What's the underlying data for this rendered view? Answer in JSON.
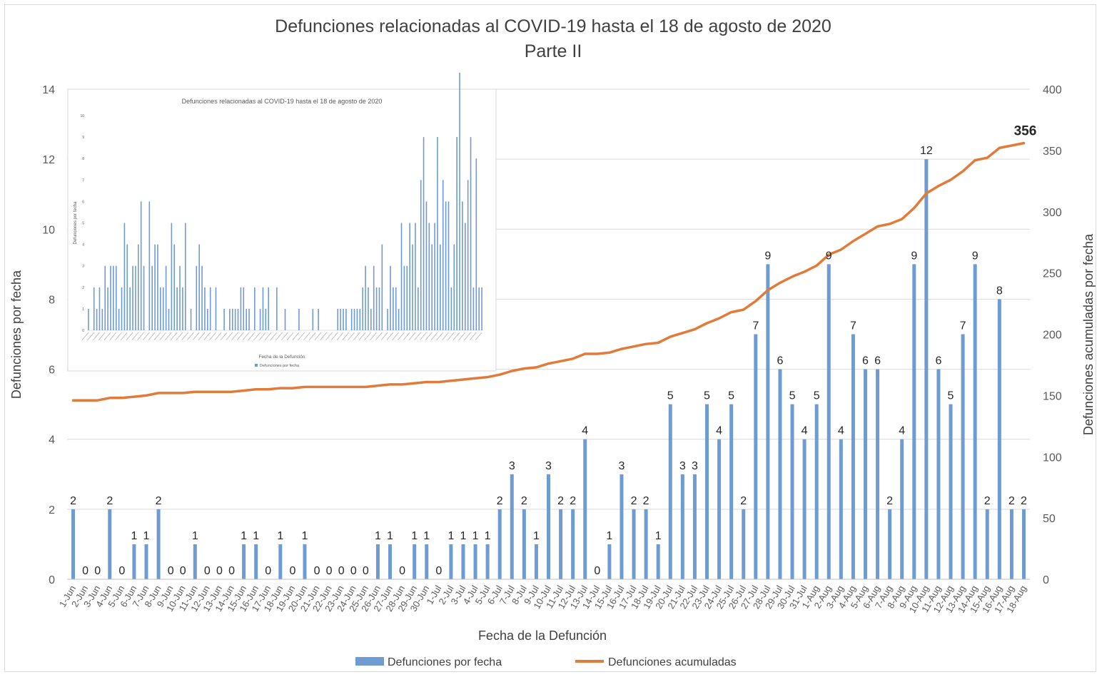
{
  "chart_data": {
    "type": "bar",
    "title": "Defunciones relacionadas al COVID-19 hasta el 18 de agosto de 2020",
    "subtitle": "Parte II",
    "xlabel": "Fecha de la Defunción",
    "ylabel": "Defunciones por fecha",
    "ylabel_right": "Defunciones acumuladas por fecha",
    "ylim": [
      0,
      14
    ],
    "ylim_right": [
      0,
      400
    ],
    "yticks": [
      0,
      2,
      4,
      6,
      8,
      10,
      12,
      14
    ],
    "yticks_right": [
      0,
      50,
      100,
      150,
      200,
      250,
      300,
      350,
      400
    ],
    "grid": true,
    "legend_position": "bottom",
    "categories": [
      "1-Jun",
      "2-Jun",
      "3-Jun",
      "4-Jun",
      "5-Jun",
      "6-Jun",
      "7-Jun",
      "8-Jun",
      "9-Jun",
      "10-Jun",
      "11-Jun",
      "12-Jun",
      "13-Jun",
      "14-Jun",
      "15-Jun",
      "16-Jun",
      "17-Jun",
      "18-Jun",
      "19-Jun",
      "20-Jun",
      "21-Jun",
      "22-Jun",
      "23-Jun",
      "24-Jun",
      "25-Jun",
      "26-Jun",
      "27-Jun",
      "28-Jun",
      "29-Jun",
      "30-Jun",
      "1-Jul",
      "2-Jul",
      "3-Jul",
      "4-Jul",
      "5-Jul",
      "6-Jul",
      "7-Jul",
      "8-Jul",
      "9-Jul",
      "10-Jul",
      "11-Jul",
      "12-Jul",
      "13-Jul",
      "14-Jul",
      "15-Jul",
      "16-Jul",
      "17-Jul",
      "18-Jul",
      "19-Jul",
      "20-Jul",
      "21-Jul",
      "22-Jul",
      "23-Jul",
      "24-Jul",
      "25-Jul",
      "26-Jul",
      "27-Jul",
      "28-Jul",
      "29-Jul",
      "30-Jul",
      "31-Jul",
      "1-Aug",
      "2-Aug",
      "3-Aug",
      "4-Aug",
      "5-Aug",
      "6-Aug",
      "7-Aug",
      "8-Aug",
      "9-Aug",
      "10-Aug",
      "11-Aug",
      "12-Aug",
      "13-Aug",
      "14-Aug",
      "15-Aug",
      "16-Aug",
      "17-Aug",
      "18-Aug"
    ],
    "series": [
      {
        "name": "Defunciones por fecha",
        "type": "bar",
        "axis": "left",
        "color": "#6f9bd3",
        "values": [
          2,
          0,
          0,
          2,
          0,
          1,
          1,
          2,
          0,
          0,
          1,
          0,
          0,
          0,
          1,
          1,
          0,
          1,
          0,
          1,
          0,
          0,
          0,
          0,
          0,
          1,
          1,
          0,
          1,
          1,
          0,
          1,
          1,
          1,
          1,
          2,
          3,
          2,
          1,
          3,
          2,
          2,
          4,
          0,
          1,
          3,
          2,
          2,
          1,
          5,
          3,
          3,
          5,
          4,
          5,
          2,
          7,
          9,
          6,
          5,
          4,
          5,
          9,
          4,
          7,
          6,
          6,
          2,
          4,
          9,
          12,
          6,
          5,
          7,
          9,
          2,
          8,
          2,
          2
        ]
      },
      {
        "name": "Defunciones acumuladas",
        "type": "line",
        "axis": "right",
        "color": "#e07b39",
        "values": [
          146,
          146,
          146,
          148,
          148,
          149,
          150,
          152,
          152,
          152,
          153,
          153,
          153,
          153,
          154,
          155,
          155,
          156,
          156,
          157,
          157,
          157,
          157,
          157,
          157,
          158,
          159,
          159,
          160,
          161,
          161,
          162,
          163,
          164,
          165,
          167,
          170,
          172,
          173,
          176,
          178,
          180,
          184,
          184,
          185,
          188,
          190,
          192,
          193,
          198,
          201,
          204,
          209,
          213,
          218,
          220,
          227,
          236,
          242,
          247,
          251,
          256,
          265,
          269,
          276,
          282,
          288,
          290,
          294,
          303,
          315,
          321,
          326,
          333,
          342,
          344,
          352,
          354,
          356
        ]
      }
    ],
    "annotations": [
      {
        "text": "356",
        "series": "Defunciones acumuladas",
        "category": "18-Aug"
      }
    ],
    "inset": {
      "title": "Defunciones relacionadas al COVID-19 hasta el 18 de agosto de 2020",
      "xlabel": "Fecha de la Defunción",
      "ylabel": "Defunciones por fecha",
      "legend": "Defunciones por fecha",
      "yticks": [
        0,
        1,
        2,
        3,
        4,
        5,
        6,
        7,
        8,
        9,
        10
      ],
      "values": [
        1,
        0,
        2,
        1,
        2,
        1,
        3,
        2,
        3,
        3,
        3,
        1,
        2,
        5,
        4,
        2,
        3,
        3,
        4,
        6,
        3,
        0,
        6,
        3,
        4,
        4,
        2,
        2,
        3,
        1,
        5,
        4,
        2,
        3,
        2,
        5,
        0,
        1,
        0,
        3,
        4,
        3,
        2,
        1,
        2,
        0,
        2,
        0,
        0,
        1,
        0,
        1,
        1,
        1,
        1,
        2,
        2,
        1,
        1,
        0,
        2,
        0,
        1,
        2,
        1,
        2,
        0,
        0,
        2,
        0,
        0,
        1,
        0,
        0,
        0,
        0,
        1,
        0,
        0,
        0,
        0,
        1,
        0,
        1,
        0,
        0,
        0,
        0,
        0,
        0,
        1,
        1,
        1,
        1,
        0,
        1,
        1,
        1,
        1,
        2,
        3,
        2,
        1,
        3,
        2,
        2,
        4,
        0,
        1,
        3,
        2,
        2,
        1,
        5,
        3,
        3,
        5,
        4,
        5,
        2,
        7,
        9,
        6,
        5,
        4,
        5,
        9,
        4,
        7,
        6,
        6,
        2,
        4,
        9,
        12,
        6,
        5,
        7,
        9,
        2,
        8,
        2,
        2
      ]
    }
  }
}
